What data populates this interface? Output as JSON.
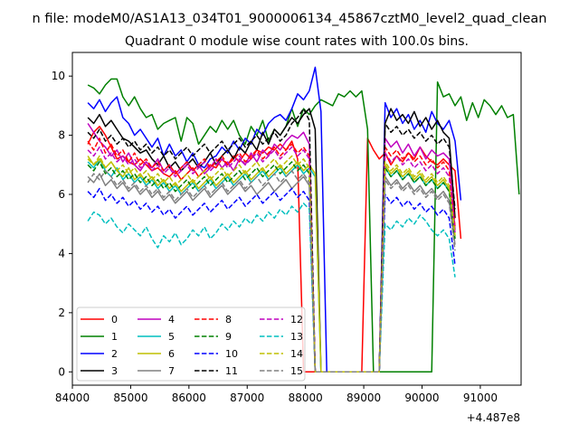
{
  "chart_data": {
    "type": "line",
    "suptitle": "n file: modeM0/AS1A13_034T01_9000006134_45867cztM0_level2_quad_clean",
    "title": "Quadrant 0 module wise count rates with 100.0s bins.",
    "xlabel": "",
    "ylabel": "",
    "x_offset_label": "+4.487e8",
    "xlim": [
      84000,
      91700
    ],
    "ylim": [
      -0.45,
      10.8
    ],
    "x_ticks": [
      84000,
      85000,
      86000,
      87000,
      88000,
      89000,
      90000,
      91000
    ],
    "y_ticks": [
      0,
      2,
      4,
      6,
      8,
      10
    ],
    "x_tick_labels": [
      "84000",
      "85000",
      "86000",
      "87000",
      "88000",
      "89000",
      "90000",
      "91000"
    ],
    "y_tick_labels": [
      "0",
      "2",
      "4",
      "6",
      "8",
      "10"
    ],
    "grid": false,
    "legend_placement": "lower-left",
    "legend_columns": 4,
    "x_start": 84266,
    "x_step": 100,
    "series": [
      {
        "name": "0",
        "color": "#ff0000",
        "dash": "solid",
        "values": [
          7.7,
          8.1,
          8.3,
          8.0,
          7.6,
          7.2,
          7.3,
          7.1,
          7.0,
          7.2,
          7.0,
          6.8,
          6.9,
          6.7,
          6.6,
          6.8,
          6.5,
          6.7,
          6.9,
          6.6,
          6.8,
          7.0,
          6.9,
          7.2,
          7.0,
          7.3,
          7.1,
          7.4,
          7.2,
          7.5,
          7.4,
          7.6,
          7.5,
          7.7,
          7.5,
          7.8,
          7.2,
          0.0,
          0.0,
          0.0,
          0.0,
          0.0,
          0.0,
          0.0,
          0.0,
          0.0,
          0.0,
          0.0,
          7.9,
          7.5,
          7.2,
          7.4,
          7.0,
          7.3,
          7.1,
          7.4,
          7.2,
          7.6,
          7.3,
          7.1,
          7.0,
          7.2,
          7.0,
          6.8,
          4.5
        ]
      },
      {
        "name": "1",
        "color": "#008000",
        "dash": "solid",
        "values": [
          9.7,
          9.6,
          9.4,
          9.7,
          9.9,
          9.9,
          9.3,
          9.0,
          9.3,
          8.9,
          8.6,
          8.7,
          8.2,
          8.4,
          8.5,
          8.6,
          7.8,
          8.6,
          8.4,
          7.7,
          8.0,
          8.3,
          8.1,
          8.5,
          8.2,
          8.5,
          8.0,
          7.7,
          8.3,
          8.0,
          8.5,
          7.8,
          8.2,
          8.0,
          8.3,
          8.9,
          8.3,
          8.9,
          8.7,
          9.0,
          9.2,
          9.1,
          9.0,
          9.4,
          9.3,
          9.5,
          9.3,
          9.5,
          8.2,
          0.0,
          0.0,
          0.0,
          0.0,
          0.0,
          0.0,
          0.0,
          0.0,
          0.0,
          0.0,
          0.0,
          9.8,
          9.3,
          9.4,
          9.0,
          9.3,
          8.5,
          9.1,
          8.6,
          9.2,
          9.0,
          8.7,
          9.0,
          8.6,
          8.7,
          6.0
        ]
      },
      {
        "name": "2",
        "color": "#0000ff",
        "dash": "solid",
        "values": [
          9.1,
          8.9,
          9.2,
          8.8,
          9.1,
          9.3,
          8.6,
          8.4,
          8.0,
          8.2,
          7.9,
          7.6,
          7.9,
          7.3,
          7.7,
          7.3,
          7.5,
          7.1,
          7.4,
          7.0,
          6.9,
          7.2,
          7.3,
          7.6,
          7.4,
          7.8,
          7.5,
          7.9,
          7.7,
          8.2,
          8.0,
          8.4,
          8.6,
          8.7,
          8.5,
          8.9,
          9.4,
          9.2,
          9.5,
          10.3,
          8.8,
          0.0,
          0.0,
          0.0,
          0.0,
          0.0,
          0.0,
          0.0,
          0.0,
          0.0,
          0.0,
          9.1,
          8.6,
          8.9,
          8.4,
          8.7,
          8.2,
          8.5,
          8.1,
          8.8,
          8.4,
          8.2,
          8.5,
          7.8,
          5.8
        ]
      },
      {
        "name": "3",
        "color": "#000000",
        "dash": "solid",
        "values": [
          8.6,
          8.4,
          8.7,
          8.3,
          8.5,
          8.2,
          7.9,
          7.8,
          7.6,
          7.4,
          7.5,
          7.2,
          7.0,
          7.3,
          6.9,
          7.1,
          6.8,
          7.0,
          7.2,
          6.9,
          7.1,
          7.4,
          7.0,
          7.3,
          7.5,
          7.2,
          7.6,
          7.4,
          7.8,
          7.5,
          8.1,
          7.7,
          8.2,
          8.0,
          8.3,
          8.6,
          8.4,
          8.7,
          8.9,
          8.2,
          0.0,
          0.0,
          0.0,
          0.0,
          0.0,
          0.0,
          0.0,
          0.0,
          0.0,
          0.0,
          0.0,
          8.4,
          8.9,
          8.5,
          8.7,
          8.4,
          8.8,
          8.3,
          8.6,
          8.2,
          8.5,
          8.1,
          7.9,
          5.2
        ]
      },
      {
        "name": "4",
        "color": "#bf00bf",
        "dash": "solid",
        "values": [
          8.4,
          8.1,
          7.8,
          7.6,
          7.3,
          7.5,
          7.1,
          7.4,
          7.0,
          6.8,
          7.1,
          6.9,
          7.2,
          6.8,
          7.0,
          6.7,
          6.9,
          7.1,
          6.8,
          7.0,
          6.7,
          6.9,
          7.2,
          6.9,
          7.1,
          6.8,
          7.2,
          7.0,
          7.4,
          7.1,
          7.5,
          7.3,
          7.7,
          7.5,
          7.8,
          8.0,
          7.9,
          8.1,
          7.7,
          0.0,
          0.0,
          0.0,
          0.0,
          0.0,
          0.0,
          0.0,
          0.0,
          0.0,
          0.0,
          0.0,
          0.0,
          7.9,
          7.6,
          7.8,
          7.4,
          7.7,
          7.3,
          7.6,
          7.2,
          7.5,
          7.3,
          7.4,
          7.2,
          4.8
        ]
      },
      {
        "name": "5",
        "color": "#00bfbf",
        "dash": "solid",
        "values": [
          7.1,
          6.9,
          7.2,
          6.8,
          6.6,
          6.9,
          6.5,
          6.7,
          6.4,
          6.6,
          6.3,
          6.5,
          6.2,
          6.4,
          6.1,
          6.3,
          6.0,
          6.2,
          6.4,
          6.1,
          6.3,
          6.5,
          6.2,
          6.4,
          6.6,
          6.3,
          6.5,
          6.7,
          6.4,
          6.6,
          6.8,
          6.5,
          6.7,
          6.9,
          6.6,
          6.8,
          7.0,
          6.7,
          6.9,
          6.6,
          0.0,
          0.0,
          0.0,
          0.0,
          0.0,
          0.0,
          0.0,
          0.0,
          0.0,
          0.0,
          0.0,
          6.9,
          6.6,
          6.8,
          6.5,
          6.7,
          6.4,
          6.6,
          6.3,
          6.5,
          6.2,
          6.4,
          6.1,
          4.6
        ]
      },
      {
        "name": "6",
        "color": "#bfbf00",
        "dash": "solid",
        "values": [
          7.3,
          7.0,
          7.2,
          6.9,
          7.1,
          6.8,
          6.6,
          6.9,
          6.5,
          6.7,
          6.4,
          6.6,
          6.3,
          6.5,
          6.2,
          6.4,
          6.1,
          6.3,
          6.5,
          6.2,
          6.4,
          6.6,
          6.3,
          6.5,
          6.7,
          6.4,
          6.6,
          6.8,
          6.5,
          6.7,
          6.9,
          6.6,
          6.8,
          7.0,
          6.7,
          6.9,
          7.1,
          6.8,
          7.0,
          6.7,
          0.0,
          0.0,
          0.0,
          0.0,
          0.0,
          0.0,
          0.0,
          0.0,
          0.0,
          0.0,
          0.0,
          7.0,
          6.7,
          6.9,
          6.6,
          6.8,
          6.5,
          6.7,
          6.4,
          6.6,
          6.3,
          6.5,
          6.2,
          4.7
        ]
      },
      {
        "name": "7",
        "color": "#808080",
        "dash": "solid",
        "values": [
          6.6,
          6.4,
          6.7,
          6.3,
          6.5,
          6.2,
          6.4,
          6.1,
          6.3,
          6.0,
          6.2,
          5.9,
          6.1,
          5.8,
          6.0,
          5.7,
          5.9,
          6.1,
          5.8,
          6.0,
          6.2,
          5.9,
          6.1,
          6.3,
          6.0,
          6.2,
          6.4,
          6.1,
          6.3,
          6.0,
          6.2,
          6.4,
          6.1,
          6.3,
          6.5,
          6.2,
          6.4,
          6.6,
          6.3,
          0.0,
          0.0,
          0.0,
          0.0,
          0.0,
          0.0,
          0.0,
          0.0,
          0.0,
          0.0,
          0.0,
          0.0,
          6.6,
          6.3,
          6.5,
          6.2,
          6.4,
          6.1,
          6.3,
          6.0,
          6.2,
          5.9,
          6.1,
          5.8,
          4.3
        ]
      },
      {
        "name": "8",
        "color": "#ff0000",
        "dash": "dashed",
        "values": [
          7.8,
          7.5,
          7.9,
          7.4,
          7.7,
          7.3,
          7.5,
          7.1,
          7.4,
          7.0,
          7.2,
          6.9,
          7.1,
          6.8,
          7.0,
          6.7,
          6.9,
          7.1,
          6.8,
          7.0,
          7.2,
          6.9,
          7.1,
          7.3,
          7.0,
          7.2,
          7.4,
          7.1,
          7.3,
          7.5,
          7.2,
          7.4,
          7.6,
          7.3,
          7.5,
          7.7,
          7.4,
          7.6,
          7.3,
          0.0,
          0.0,
          0.0,
          0.0,
          0.0,
          0.0,
          0.0,
          0.0,
          0.0,
          0.0,
          0.0,
          0.0,
          7.6,
          7.3,
          7.5,
          7.2,
          7.4,
          7.1,
          7.3,
          7.0,
          7.2,
          6.9,
          7.1,
          6.8,
          4.9
        ]
      },
      {
        "name": "9",
        "color": "#008000",
        "dash": "dashed",
        "values": [
          7.0,
          6.8,
          7.1,
          6.7,
          6.9,
          6.6,
          6.8,
          6.5,
          6.7,
          6.4,
          6.6,
          6.3,
          6.5,
          6.2,
          6.4,
          6.1,
          6.3,
          6.5,
          6.2,
          6.4,
          6.6,
          6.3,
          6.5,
          6.7,
          6.4,
          6.6,
          6.8,
          6.5,
          6.7,
          6.9,
          6.6,
          6.8,
          7.0,
          6.7,
          6.9,
          7.1,
          6.8,
          7.0,
          6.7,
          0.0,
          0.0,
          0.0,
          0.0,
          0.0,
          0.0,
          0.0,
          0.0,
          0.0,
          0.0,
          0.0,
          0.0,
          6.9,
          6.6,
          6.8,
          6.5,
          6.7,
          6.4,
          6.6,
          6.3,
          6.5,
          6.2,
          6.4,
          6.1,
          4.5
        ]
      },
      {
        "name": "10",
        "color": "#0000ff",
        "dash": "dashed",
        "values": [
          6.1,
          5.9,
          6.2,
          5.8,
          6.0,
          5.7,
          5.9,
          5.6,
          5.8,
          5.5,
          5.7,
          5.4,
          5.6,
          5.3,
          5.5,
          5.2,
          5.4,
          5.6,
          5.3,
          5.5,
          5.7,
          5.4,
          5.6,
          5.8,
          5.5,
          5.7,
          5.9,
          5.6,
          5.8,
          6.0,
          5.7,
          5.9,
          6.1,
          5.8,
          6.0,
          6.2,
          5.9,
          6.1,
          5.8,
          0.0,
          0.0,
          0.0,
          0.0,
          0.0,
          0.0,
          0.0,
          0.0,
          0.0,
          0.0,
          0.0,
          0.0,
          6.0,
          5.7,
          5.9,
          5.6,
          5.8,
          5.5,
          5.7,
          5.4,
          5.6,
          5.3,
          5.5,
          5.2,
          3.6
        ]
      },
      {
        "name": "11",
        "color": "#000000",
        "dash": "dashed",
        "values": [
          8.1,
          7.9,
          8.2,
          7.8,
          8.0,
          7.7,
          7.9,
          7.6,
          7.8,
          7.5,
          7.7,
          7.4,
          7.6,
          7.3,
          7.5,
          7.2,
          7.4,
          7.6,
          7.3,
          7.5,
          7.7,
          7.4,
          7.6,
          7.8,
          7.5,
          7.7,
          7.9,
          7.6,
          7.8,
          8.0,
          7.7,
          7.9,
          8.1,
          7.8,
          8.0,
          8.4,
          8.6,
          8.9,
          8.5,
          0.0,
          0.0,
          0.0,
          0.0,
          0.0,
          0.0,
          0.0,
          0.0,
          0.0,
          0.0,
          0.0,
          0.0,
          8.4,
          8.1,
          8.3,
          8.0,
          8.2,
          7.9,
          8.1,
          7.8,
          8.0,
          7.7,
          7.9,
          7.6,
          5.5
        ]
      },
      {
        "name": "12",
        "color": "#bf00bf",
        "dash": "dashed",
        "values": [
          7.5,
          7.3,
          7.6,
          7.2,
          7.4,
          7.1,
          7.3,
          7.0,
          7.2,
          6.9,
          7.1,
          6.8,
          7.0,
          6.7,
          6.9,
          6.6,
          6.8,
          7.0,
          6.7,
          6.9,
          7.1,
          6.8,
          7.0,
          7.2,
          6.9,
          7.1,
          7.3,
          7.0,
          7.2,
          7.4,
          7.1,
          7.3,
          7.5,
          7.2,
          7.4,
          7.6,
          7.3,
          7.5,
          7.2,
          0.0,
          0.0,
          0.0,
          0.0,
          0.0,
          0.0,
          0.0,
          0.0,
          0.0,
          0.0,
          0.0,
          0.0,
          7.4,
          7.1,
          7.3,
          7.0,
          7.2,
          6.9,
          7.1,
          6.8,
          7.0,
          6.7,
          6.9,
          6.6,
          4.7
        ]
      },
      {
        "name": "13",
        "color": "#00bfbf",
        "dash": "dashed",
        "values": [
          5.1,
          5.4,
          5.3,
          5.0,
          5.2,
          4.9,
          4.7,
          5.0,
          4.8,
          4.6,
          4.9,
          4.5,
          4.2,
          4.6,
          4.4,
          4.7,
          4.3,
          4.5,
          4.8,
          4.6,
          4.9,
          4.5,
          4.7,
          5.0,
          4.8,
          5.1,
          4.9,
          5.2,
          5.0,
          5.3,
          5.1,
          5.4,
          5.2,
          5.5,
          5.3,
          5.6,
          5.4,
          5.7,
          5.5,
          0.0,
          0.0,
          0.0,
          0.0,
          0.0,
          0.0,
          0.0,
          0.0,
          0.0,
          0.0,
          0.0,
          0.0,
          5.0,
          4.8,
          5.1,
          4.9,
          5.2,
          5.0,
          5.3,
          5.1,
          4.8,
          4.6,
          4.8,
          4.5,
          3.2
        ]
      },
      {
        "name": "14",
        "color": "#bfbf00",
        "dash": "dashed",
        "values": [
          7.2,
          7.0,
          7.3,
          6.9,
          7.1,
          6.8,
          7.0,
          6.7,
          6.9,
          6.6,
          6.8,
          6.5,
          6.7,
          6.4,
          6.6,
          6.3,
          6.5,
          6.7,
          6.4,
          6.6,
          6.8,
          6.5,
          6.7,
          6.9,
          6.6,
          6.8,
          7.0,
          6.7,
          6.9,
          7.1,
          6.8,
          7.0,
          7.2,
          6.9,
          7.1,
          7.3,
          7.0,
          7.2,
          6.9,
          0.0,
          0.0,
          0.0,
          0.0,
          0.0,
          0.0,
          0.0,
          0.0,
          0.0,
          0.0,
          0.0,
          0.0,
          7.1,
          6.8,
          7.0,
          6.7,
          6.9,
          6.6,
          6.8,
          6.5,
          6.7,
          6.4,
          6.6,
          6.3,
          4.6
        ]
      },
      {
        "name": "15",
        "color": "#808080",
        "dash": "dashed",
        "values": [
          6.4,
          6.7,
          6.5,
          6.8,
          6.6,
          6.3,
          6.5,
          6.2,
          6.4,
          6.1,
          6.3,
          6.0,
          6.2,
          5.9,
          6.1,
          5.8,
          6.0,
          6.2,
          5.9,
          6.1,
          6.3,
          6.0,
          6.2,
          6.4,
          6.1,
          6.3,
          6.5,
          6.2,
          6.4,
          6.6,
          6.3,
          6.5,
          6.7,
          6.4,
          6.6,
          6.8,
          6.5,
          6.7,
          6.4,
          0.0,
          0.0,
          0.0,
          0.0,
          0.0,
          0.0,
          0.0,
          0.0,
          0.0,
          0.0,
          0.0,
          0.0,
          6.5,
          6.2,
          6.4,
          6.1,
          6.3,
          6.0,
          6.2,
          5.9,
          6.1,
          5.8,
          6.0,
          5.7,
          4.1
        ]
      }
    ]
  }
}
